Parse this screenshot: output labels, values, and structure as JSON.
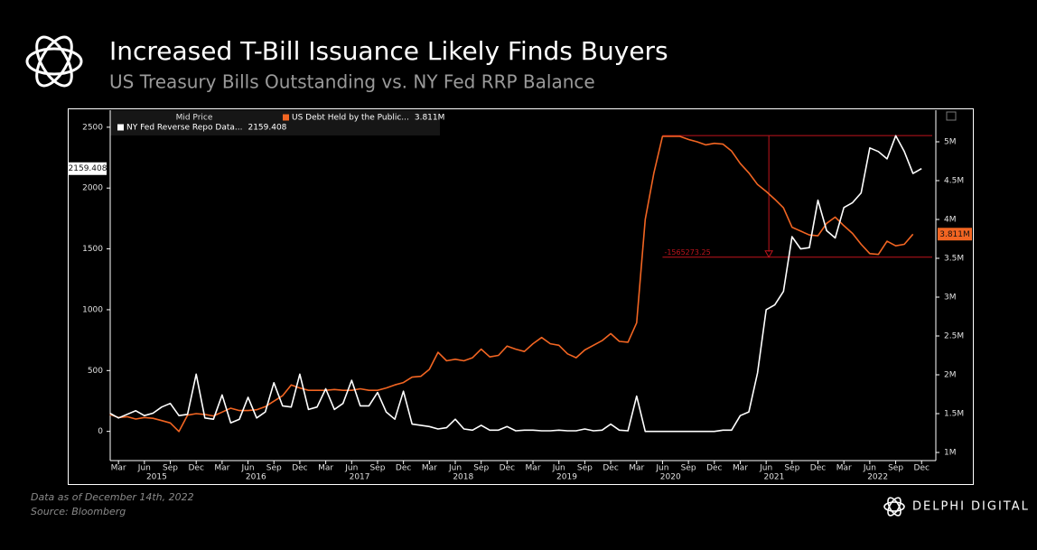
{
  "header": {
    "title": "Increased T-Bill Issuance Likely Finds Buyers",
    "subtitle": "US Treasury Bills Outstanding vs. NY Fed RRP Balance"
  },
  "footer": {
    "note": "Data as of December  14th, 2022",
    "source": "Source: Bloomberg",
    "brand": "DELPHI DIGITAL"
  },
  "chart_data": {
    "type": "line",
    "legend_header": "Mid Price",
    "categories": [
      "2015-02",
      "2015-03",
      "2015-04",
      "2015-05",
      "2015-06",
      "2015-07",
      "2015-08",
      "2015-09",
      "2015-10",
      "2015-11",
      "2015-12",
      "2016-01",
      "2016-02",
      "2016-03",
      "2016-04",
      "2016-05",
      "2016-06",
      "2016-07",
      "2016-08",
      "2016-09",
      "2016-10",
      "2016-11",
      "2016-12",
      "2017-01",
      "2017-02",
      "2017-03",
      "2017-04",
      "2017-05",
      "2017-06",
      "2017-07",
      "2017-08",
      "2017-09",
      "2017-10",
      "2017-11",
      "2017-12",
      "2018-01",
      "2018-02",
      "2018-03",
      "2018-04",
      "2018-05",
      "2018-06",
      "2018-07",
      "2018-08",
      "2018-09",
      "2018-10",
      "2018-11",
      "2018-12",
      "2019-01",
      "2019-02",
      "2019-03",
      "2019-04",
      "2019-05",
      "2019-06",
      "2019-07",
      "2019-08",
      "2019-09",
      "2019-10",
      "2019-11",
      "2019-12",
      "2020-01",
      "2020-02",
      "2020-03",
      "2020-04",
      "2020-05",
      "2020-06",
      "2020-07",
      "2020-08",
      "2020-09",
      "2020-10",
      "2020-11",
      "2020-12",
      "2021-01",
      "2021-02",
      "2021-03",
      "2021-04",
      "2021-05",
      "2021-06",
      "2021-07",
      "2021-08",
      "2021-09",
      "2021-10",
      "2021-11",
      "2021-12",
      "2022-01",
      "2022-02",
      "2022-03",
      "2022-04",
      "2022-05",
      "2022-06",
      "2022-07",
      "2022-08",
      "2022-09",
      "2022-10",
      "2022-11",
      "2022-12"
    ],
    "series": [
      {
        "name": "NY Fed Reverse Repo Data...",
        "color": "#ffffff",
        "axis": "y",
        "values": [
          150,
          110,
          140,
          170,
          130,
          150,
          200,
          230,
          130,
          140,
          470,
          110,
          100,
          300,
          70,
          100,
          280,
          110,
          160,
          400,
          210,
          200,
          470,
          180,
          200,
          350,
          180,
          230,
          420,
          210,
          210,
          320,
          160,
          100,
          330,
          60,
          50,
          40,
          20,
          30,
          100,
          20,
          10,
          50,
          10,
          10,
          40,
          5,
          10,
          10,
          5,
          5,
          10,
          5,
          5,
          20,
          5,
          10,
          60,
          10,
          5,
          290,
          0,
          0,
          0,
          0,
          0,
          0,
          0,
          0,
          0,
          10,
          10,
          130,
          160,
          480,
          1000,
          1040,
          1150,
          1600,
          1500,
          1510,
          1900,
          1650,
          1590,
          1840,
          1880,
          1960,
          2330,
          2300,
          2240,
          2430,
          2300,
          2120,
          2159.408
        ]
      },
      {
        "name": "US Debt Held by the Public...",
        "color": "#f26522",
        "axis": "y2",
        "values": [
          1490000,
          1450000,
          1460000,
          1430000,
          1450000,
          1440000,
          1410000,
          1380000,
          1270000,
          1480000,
          1500000,
          1490000,
          1470000,
          1520000,
          1570000,
          1540000,
          1540000,
          1550000,
          1590000,
          1660000,
          1730000,
          1870000,
          1830000,
          1800000,
          1800000,
          1800000,
          1810000,
          1800000,
          1800000,
          1820000,
          1800000,
          1800000,
          1830000,
          1870000,
          1900000,
          1970000,
          1980000,
          2070000,
          2290000,
          2180000,
          2200000,
          2180000,
          2220000,
          2330000,
          2230000,
          2250000,
          2370000,
          2330000,
          2300000,
          2400000,
          2480000,
          2400000,
          2380000,
          2270000,
          2220000,
          2320000,
          2380000,
          2440000,
          2530000,
          2430000,
          2420000,
          2670000,
          4000000,
          4600000,
          5070000,
          5070000,
          5070000,
          5030000,
          5000000,
          4960000,
          4980000,
          4970000,
          4880000,
          4720000,
          4600000,
          4450000,
          4360000,
          4260000,
          4150000,
          3900000,
          3850000,
          3800000,
          3790000,
          3950000,
          4030000,
          3920000,
          3820000,
          3680000,
          3560000,
          3550000,
          3720000,
          3660000,
          3680000,
          3811000,
          null
        ],
        "value_labels": {
          "93": "3.811M"
        }
      }
    ],
    "ylim": [
      -240,
      2640
    ],
    "yticks": [
      0,
      500,
      1000,
      1500,
      2000,
      2500
    ],
    "y2lim": [
      895300,
      5407000
    ],
    "y2ticks": [
      {
        "value": 1000000,
        "label": "1M"
      },
      {
        "value": 1500000,
        "label": "1.5M"
      },
      {
        "value": 2000000,
        "label": "2M"
      },
      {
        "value": 2500000,
        "label": "2.5M"
      },
      {
        "value": 3000000,
        "label": "3M"
      },
      {
        "value": 3500000,
        "label": "3.5M"
      },
      {
        "value": 4000000,
        "label": "4M"
      },
      {
        "value": 4500000,
        "label": "4.5M"
      },
      {
        "value": 5000000,
        "label": "5M"
      }
    ],
    "xticks": [
      {
        "value": "2015-03",
        "label": "Mar"
      },
      {
        "value": "2015-06",
        "label": "Jun"
      },
      {
        "value": "2015-09",
        "label": "Sep"
      },
      {
        "value": "2015-12",
        "label": "Dec"
      },
      {
        "value": "2016-03",
        "label": "Mar"
      },
      {
        "value": "2016-06",
        "label": "Jun"
      },
      {
        "value": "2016-09",
        "label": "Sep"
      },
      {
        "value": "2016-12",
        "label": "Dec"
      },
      {
        "value": "2017-03",
        "label": "Mar"
      },
      {
        "value": "2017-06",
        "label": "Jun"
      },
      {
        "value": "2017-09",
        "label": "Sep"
      },
      {
        "value": "2017-12",
        "label": "Dec"
      },
      {
        "value": "2018-03",
        "label": "Mar"
      },
      {
        "value": "2018-06",
        "label": "Jun"
      },
      {
        "value": "2018-09",
        "label": "Sep"
      },
      {
        "value": "2018-12",
        "label": "Dec"
      },
      {
        "value": "2019-03",
        "label": "Mar"
      },
      {
        "value": "2019-06",
        "label": "Jun"
      },
      {
        "value": "2019-09",
        "label": "Sep"
      },
      {
        "value": "2019-12",
        "label": "Dec"
      },
      {
        "value": "2020-03",
        "label": "Mar"
      },
      {
        "value": "2020-06",
        "label": "Jun"
      },
      {
        "value": "2020-09",
        "label": "Sep"
      },
      {
        "value": "2020-12",
        "label": "Dec"
      },
      {
        "value": "2021-03",
        "label": "Mar"
      },
      {
        "value": "2021-06",
        "label": "Jun"
      },
      {
        "value": "2021-09",
        "label": "Sep"
      },
      {
        "value": "2021-12",
        "label": "Dec"
      },
      {
        "value": "2022-03",
        "label": "Mar"
      },
      {
        "value": "2022-06",
        "label": "Jun"
      },
      {
        "value": "2022-09",
        "label": "Sep"
      },
      {
        "value": "2022-12",
        "label": "Dec"
      }
    ],
    "years": [
      "2015",
      "2016",
      "2017",
      "2018",
      "2019",
      "2020",
      "2021",
      "2022"
    ],
    "annotation": {
      "label": "-1565273.25",
      "axis": "y2",
      "from": 5080000,
      "to": 3514726.75
    },
    "grid": false
  }
}
